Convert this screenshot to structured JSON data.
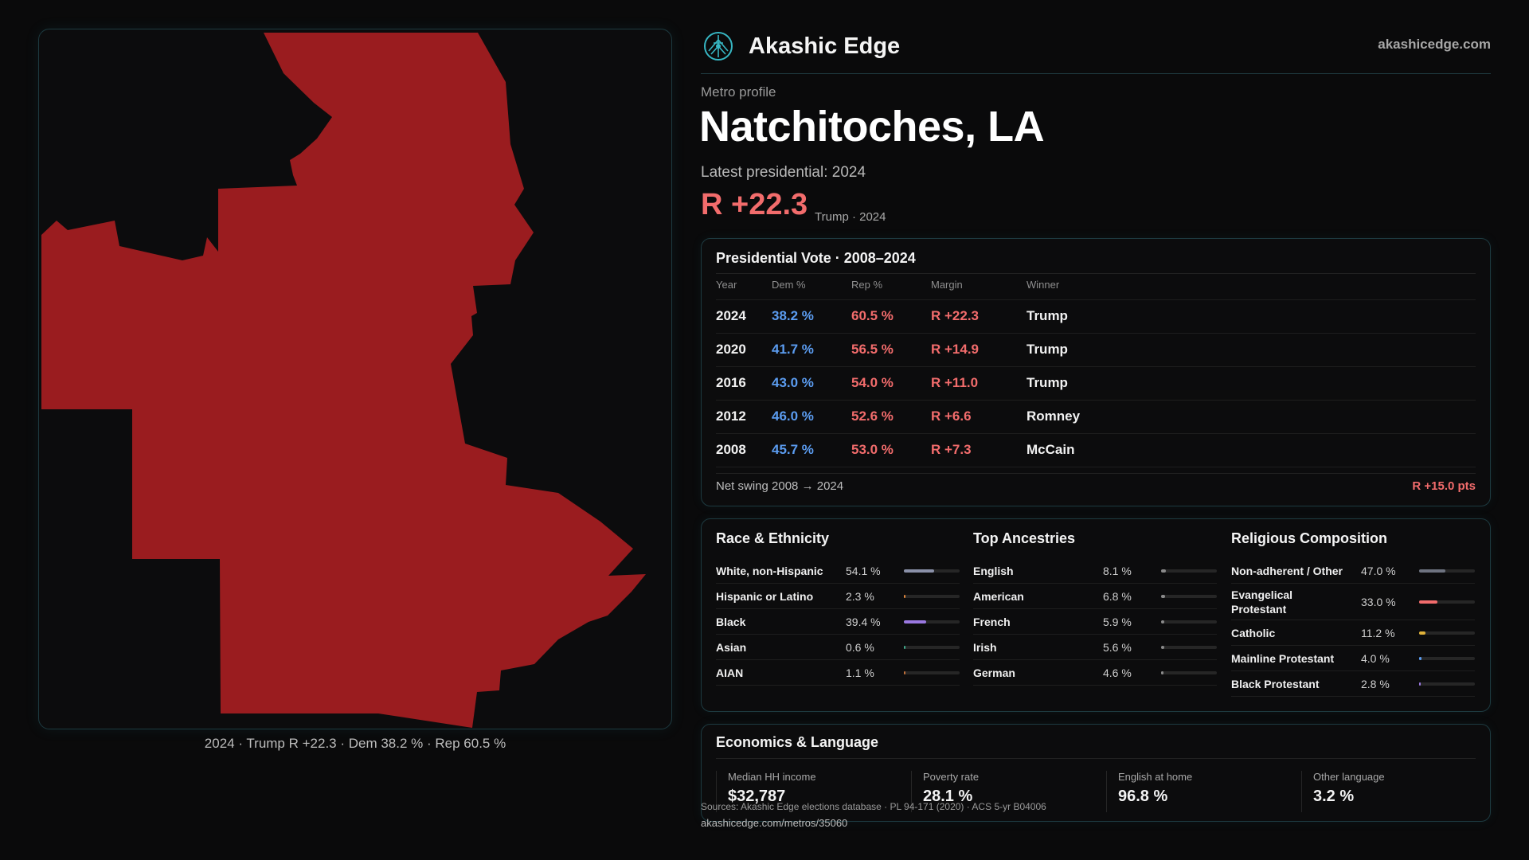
{
  "brand": {
    "name": "Akashic Edge",
    "site": "akashicedge.com",
    "logo_icon": "akashic-edge-logo-icon",
    "accent": "#37b7c4"
  },
  "map": {
    "caption": "2024 · Trump R +22.3 · Dem 38.2 % · Rep 60.5 %",
    "fill_color": "#9a1c1f"
  },
  "profile": {
    "eyebrow": "Metro profile",
    "title": "Natchitoches, LA",
    "latest_label": "Latest presidential: 2024",
    "margin": "R +22.3",
    "margin_sub": "Trump · 2024"
  },
  "vote": {
    "title": "Presidential Vote · 2008–2024",
    "headers": {
      "year": "Year",
      "dem": "Dem %",
      "rep": "Rep %",
      "margin": "Margin",
      "winner": "Winner"
    },
    "rows": [
      {
        "year": "2024",
        "dem": "38.2 %",
        "rep": "60.5 %",
        "margin": "R +22.3",
        "winner": "Trump"
      },
      {
        "year": "2020",
        "dem": "41.7 %",
        "rep": "56.5 %",
        "margin": "R +14.9",
        "winner": "Trump"
      },
      {
        "year": "2016",
        "dem": "43.0 %",
        "rep": "54.0 %",
        "margin": "R +11.0",
        "winner": "Trump"
      },
      {
        "year": "2012",
        "dem": "46.0 %",
        "rep": "52.6 %",
        "margin": "R +6.6",
        "winner": "Romney"
      },
      {
        "year": "2008",
        "dem": "45.7 %",
        "rep": "53.0 %",
        "margin": "R +7.3",
        "winner": "McCain"
      }
    ],
    "net_swing_label": "Net swing 2008 → 2024",
    "net_swing_value": "R +15.0 pts",
    "colors": {
      "dem": "#5b9cf0",
      "rep": "#f26c6c"
    }
  },
  "race": {
    "title": "Race & Ethnicity",
    "items": [
      {
        "label": "White, non-Hispanic",
        "value": "54.1 %",
        "pct": 54.1,
        "color": "#8a90a8"
      },
      {
        "label": "Hispanic or Latino",
        "value": "2.3 %",
        "pct": 2.3,
        "color": "#e0863a"
      },
      {
        "label": "Black",
        "value": "39.4 %",
        "pct": 39.4,
        "color": "#9a78e0"
      },
      {
        "label": "Asian",
        "value": "0.6 %",
        "pct": 0.6,
        "color": "#3fa88a"
      },
      {
        "label": "AIAN",
        "value": "1.1 %",
        "pct": 1.1,
        "color": "#c0703a"
      }
    ]
  },
  "ancestry": {
    "title": "Top Ancestries",
    "items": [
      {
        "label": "English",
        "value": "8.1 %",
        "pct": 8.1,
        "color": "#8a8a8a"
      },
      {
        "label": "American",
        "value": "6.8 %",
        "pct": 6.8,
        "color": "#8a8a8a"
      },
      {
        "label": "French",
        "value": "5.9 %",
        "pct": 5.9,
        "color": "#8a8a8a"
      },
      {
        "label": "Irish",
        "value": "5.6 %",
        "pct": 5.6,
        "color": "#8a8a8a"
      },
      {
        "label": "German",
        "value": "4.6 %",
        "pct": 4.6,
        "color": "#8a8a8a"
      }
    ]
  },
  "religion": {
    "title": "Religious Composition",
    "items": [
      {
        "label": "Non-adherent / Other",
        "value": "47.0 %",
        "pct": 47.0,
        "color": "#6e7380"
      },
      {
        "label": "Evangelical Protestant",
        "value": "33.0 %",
        "pct": 33.0,
        "color": "#f26c6c"
      },
      {
        "label": "Catholic",
        "value": "11.2 %",
        "pct": 11.2,
        "color": "#e0b23a"
      },
      {
        "label": "Mainline Protestant",
        "value": "4.0 %",
        "pct": 4.0,
        "color": "#5b9cf0"
      },
      {
        "label": "Black Protestant",
        "value": "2.8 %",
        "pct": 2.8,
        "color": "#9a78e0"
      }
    ]
  },
  "economics": {
    "title": "Economics & Language",
    "stats": [
      {
        "label": "Median HH income",
        "value": "$32,787"
      },
      {
        "label": "Poverty rate",
        "value": "28.1 %"
      },
      {
        "label": "English at home",
        "value": "96.8 %"
      },
      {
        "label": "Other language",
        "value": "3.2 %"
      }
    ]
  },
  "footer": {
    "sources": "Sources: Akashic Edge elections database · PL 94-171 (2020) · ACS 5-yr B04006",
    "url": "akashicedge.com/metros/35060"
  }
}
